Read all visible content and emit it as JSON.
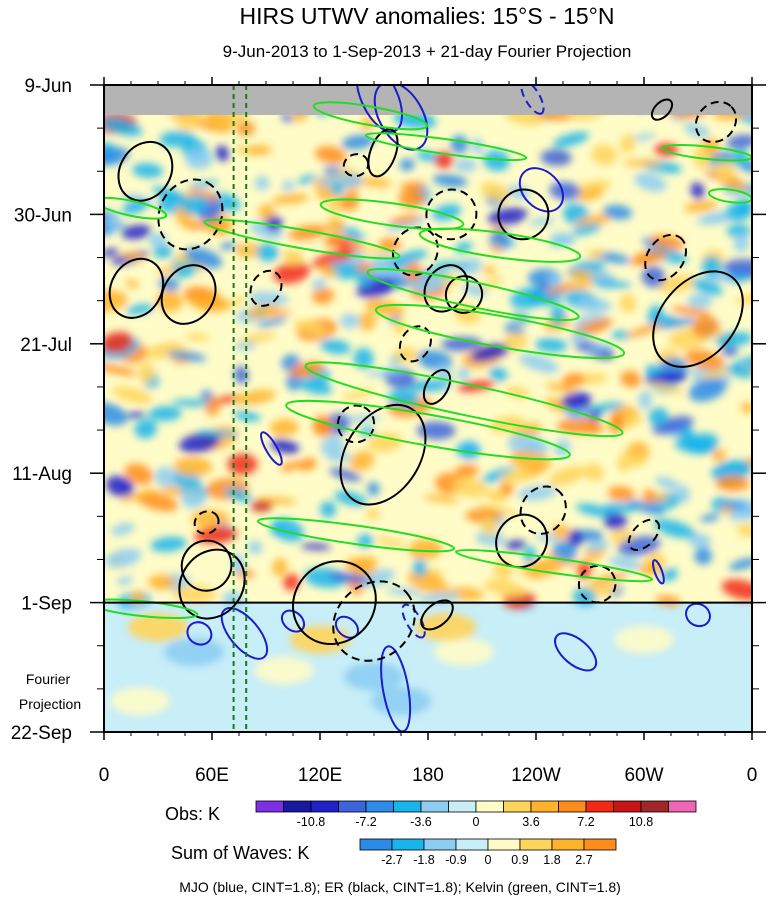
{
  "chart_data": {
    "type": "heatmap",
    "title": "HIRS UTWV anomalies: 15°S - 15°N",
    "subtitle": "9-Jun-2013 to 1-Sep-2013 + 21-day Fourier Projection",
    "x_tick_labels": [
      "0",
      "60E",
      "120E",
      "180",
      "120W",
      "60W",
      "0"
    ],
    "x_tick_values_lon": [
      0,
      60,
      120,
      180,
      240,
      300,
      360
    ],
    "xlim": [
      0,
      360
    ],
    "y_tick_labels": [
      "9-Jun",
      "30-Jun",
      "21-Jul",
      "11-Aug",
      "1-Sep",
      "22-Sep"
    ],
    "y_tick_days": [
      0,
      21,
      42,
      63,
      84,
      105
    ],
    "ylim_days": [
      0,
      105
    ],
    "observation_end_day": 84,
    "projection_label": "Fourier\nProjection",
    "missing_data_color": "#b4b4b4",
    "reference_lines_lon": [
      72,
      79
    ],
    "reference_line_color": "#1a7a1a",
    "obs_colorbar": {
      "label": "Obs: K",
      "colors": [
        "#7d2fe6",
        "#1818a0",
        "#2020c8",
        "#3c64dc",
        "#2a8ce8",
        "#18b4ec",
        "#8ccdf2",
        "#c8eef8",
        "#fffcc8",
        "#ffd45a",
        "#ffb22a",
        "#ff8c1a",
        "#f22814",
        "#c81414",
        "#a02828",
        "#f064b4"
      ],
      "tick_labels": [
        "-10.8",
        "-7.2",
        "-3.6",
        "0",
        "3.6",
        "7.2",
        "10.8"
      ]
    },
    "waves_colorbar": {
      "label": "Sum of Waves: K",
      "colors": [
        "#2a8ce8",
        "#18b4ec",
        "#8ccdf2",
        "#c8eef8",
        "#fffcc8",
        "#ffd45a",
        "#ffb22a",
        "#ff8c1a"
      ],
      "tick_labels": [
        "-2.7",
        "-1.8",
        "-0.9",
        "0",
        "0.9",
        "1.8",
        "2.7"
      ]
    },
    "contour_legend": "MJO (blue, CINT=1.8); ER (black, CINT=1.8); Kelvin (green, CINT=1.8)",
    "series": [
      {
        "name": "MJO",
        "color": "#1c1ccc",
        "contours": [
          {
            "lon": 153,
            "day": 2,
            "dlon": 10,
            "ddays": 6,
            "rot": 65,
            "dashed": false
          },
          {
            "lon": 165,
            "day": 5,
            "dlon": 12,
            "ddays": 6,
            "rot": 60,
            "dashed": false
          },
          {
            "lon": 238,
            "day": 2,
            "dlon": 4,
            "ddays": 3,
            "rot": 60,
            "dashed": true
          },
          {
            "lon": 243,
            "day": 17,
            "dlon": 10,
            "ddays": 4,
            "rot": 45,
            "dashed": false
          },
          {
            "lon": 93,
            "day": 59,
            "dlon": 3,
            "ddays": 3,
            "rot": 60,
            "dashed": false
          },
          {
            "lon": 308,
            "day": 79,
            "dlon": 2,
            "ddays": 2,
            "rot": 70,
            "dashed": false
          },
          {
            "lon": 53,
            "day": 89,
            "dlon": 6,
            "ddays": 2,
            "rot": 30,
            "dashed": false
          },
          {
            "lon": 78,
            "day": 89,
            "dlon": 8,
            "ddays": 5,
            "rot": 50,
            "dashed": false
          },
          {
            "lon": 105,
            "day": 87,
            "dlon": 5,
            "ddays": 2,
            "rot": 40,
            "dashed": false
          },
          {
            "lon": 135,
            "day": 88,
            "dlon": 5,
            "ddays": 2,
            "rot": 40,
            "dashed": false
          },
          {
            "lon": 172,
            "day": 87,
            "dlon": 4,
            "ddays": 3,
            "rot": 60,
            "dashed": true
          },
          {
            "lon": 262,
            "day": 92,
            "dlon": 7,
            "ddays": 4,
            "rot": 40,
            "dashed": false
          },
          {
            "lon": 162,
            "day": 98,
            "dlon": 7,
            "ddays": 7,
            "rot": 80,
            "dashed": false
          },
          {
            "lon": 330,
            "day": 86,
            "dlon": 6,
            "ddays": 2,
            "rot": 30,
            "dashed": false
          }
        ]
      },
      {
        "name": "ER",
        "color": "#000000",
        "contours": [
          {
            "lon": 23,
            "day": 14,
            "dlon": 14,
            "ddays": 5,
            "rot": -58,
            "dashed": false
          },
          {
            "lon": 48,
            "day": 21,
            "dlon": 20,
            "ddays": 5,
            "rot": -62,
            "dashed": true
          },
          {
            "lon": 18,
            "day": 33,
            "dlon": 14,
            "ddays": 5,
            "rot": -60,
            "dashed": false
          },
          {
            "lon": 47,
            "day": 34,
            "dlon": 14,
            "ddays": 5,
            "rot": -58,
            "dashed": false
          },
          {
            "lon": 90,
            "day": 33,
            "dlon": 8,
            "ddays": 3,
            "rot": -60,
            "dashed": true
          },
          {
            "lon": 140,
            "day": 13,
            "dlon": 6,
            "ddays": 2,
            "rot": -20,
            "dashed": true
          },
          {
            "lon": 155,
            "day": 11,
            "dlon": 7,
            "ddays": 4,
            "rot": -70,
            "dashed": false
          },
          {
            "lon": 193,
            "day": 21,
            "dlon": 14,
            "ddays": 4,
            "rot": -38,
            "dashed": true
          },
          {
            "lon": 233,
            "day": 21,
            "dlon": 14,
            "ddays": 4,
            "rot": -40,
            "dashed": false
          },
          {
            "lon": 173,
            "day": 27,
            "dlon": 12,
            "ddays": 4,
            "rot": -60,
            "dashed": true
          },
          {
            "lon": 190,
            "day": 33,
            "dlon": 11,
            "ddays": 4,
            "rot": -55,
            "dashed": false
          },
          {
            "lon": 200,
            "day": 34,
            "dlon": 10,
            "ddays": 3,
            "rot": -60,
            "dashed": false
          },
          {
            "lon": 312,
            "day": 28,
            "dlon": 10,
            "ddays": 4,
            "rot": -55,
            "dashed": true
          },
          {
            "lon": 330,
            "day": 38,
            "dlon": 30,
            "ddays": 6,
            "rot": -50,
            "dashed": false
          },
          {
            "lon": 340,
            "day": 6,
            "dlon": 12,
            "ddays": 3,
            "rot": -45,
            "dashed": true
          },
          {
            "lon": 310,
            "day": 4,
            "dlon": 4,
            "ddays": 2,
            "rot": -45,
            "dashed": false
          },
          {
            "lon": 173,
            "day": 42,
            "dlon": 8,
            "ddays": 3,
            "rot": -60,
            "dashed": true
          },
          {
            "lon": 155,
            "day": 60,
            "dlon": 30,
            "ddays": 6,
            "rot": -58,
            "dashed": false
          },
          {
            "lon": 140,
            "day": 55,
            "dlon": 10,
            "ddays": 3,
            "rot": -65,
            "dashed": true
          },
          {
            "lon": 185,
            "day": 49,
            "dlon": 6,
            "ddays": 3,
            "rot": -60,
            "dashed": false
          },
          {
            "lon": 232,
            "day": 74,
            "dlon": 15,
            "ddays": 4,
            "rot": -55,
            "dashed": false
          },
          {
            "lon": 244,
            "day": 69,
            "dlon": 12,
            "ddays": 4,
            "rot": -55,
            "dashed": true
          },
          {
            "lon": 300,
            "day": 73,
            "dlon": 6,
            "ddays": 3,
            "rot": -45,
            "dashed": true
          },
          {
            "lon": 274,
            "day": 81,
            "dlon": 10,
            "ddays": 3,
            "rot": -40,
            "dashed": true
          },
          {
            "lon": 60,
            "day": 81,
            "dlon": 20,
            "ddays": 5,
            "rot": -55,
            "dashed": false
          },
          {
            "lon": 57,
            "day": 78,
            "dlon": 14,
            "ddays": 4,
            "rot": -55,
            "dashed": false
          },
          {
            "lon": 57,
            "day": 71,
            "dlon": 6,
            "ddays": 2,
            "rot": -30,
            "dashed": true
          },
          {
            "lon": 128,
            "day": 84,
            "dlon": 22,
            "ddays": 7,
            "rot": -45,
            "dashed": false
          },
          {
            "lon": 150,
            "day": 87,
            "dlon": 24,
            "ddays": 6,
            "rot": -40,
            "dashed": true
          },
          {
            "lon": 185,
            "day": 86,
            "dlon": 6,
            "ddays": 3,
            "rot": -40,
            "dashed": false
          }
        ]
      },
      {
        "name": "Kelvin",
        "color": "#22dd22",
        "contours": [
          {
            "lon": 148,
            "day": 5,
            "dlon": 32,
            "ddays": 1.5,
            "rot": 10,
            "dashed": false
          },
          {
            "lon": 190,
            "day": 10,
            "dlon": 45,
            "ddays": 1.2,
            "rot": 8,
            "dashed": false
          },
          {
            "lon": 335,
            "day": 11,
            "dlon": 25,
            "ddays": 1.0,
            "rot": 6,
            "dashed": false
          },
          {
            "lon": 15,
            "day": 20,
            "dlon": 20,
            "ddays": 1.2,
            "rot": 12,
            "dashed": false
          },
          {
            "lon": 160,
            "day": 21,
            "dlon": 40,
            "ddays": 1.8,
            "rot": 8,
            "dashed": false
          },
          {
            "lon": 220,
            "day": 26,
            "dlon": 45,
            "ddays": 2.0,
            "rot": 8,
            "dashed": false
          },
          {
            "lon": 110,
            "day": 25,
            "dlon": 55,
            "ddays": 1.5,
            "rot": 10,
            "dashed": false
          },
          {
            "lon": 205,
            "day": 34,
            "dlon": 60,
            "ddays": 2.0,
            "rot": 12,
            "dashed": false
          },
          {
            "lon": 220,
            "day": 40,
            "dlon": 70,
            "ddays": 2.5,
            "rot": 10,
            "dashed": false
          },
          {
            "lon": 200,
            "day": 51,
            "dlon": 90,
            "ddays": 2.5,
            "rot": 12,
            "dashed": false
          },
          {
            "lon": 180,
            "day": 56,
            "dlon": 80,
            "ddays": 2.5,
            "rot": 10,
            "dashed": false
          },
          {
            "lon": 140,
            "day": 73,
            "dlon": 55,
            "ddays": 1.5,
            "rot": 8,
            "dashed": false
          },
          {
            "lon": 250,
            "day": 78,
            "dlon": 55,
            "ddays": 1.2,
            "rot": 8,
            "dashed": false
          },
          {
            "lon": 22,
            "day": 85,
            "dlon": 30,
            "ddays": 1.2,
            "rot": 6,
            "dashed": false
          },
          {
            "lon": 348,
            "day": 18,
            "dlon": 12,
            "ddays": 1.0,
            "rot": 8,
            "dashed": false
          }
        ]
      }
    ]
  }
}
